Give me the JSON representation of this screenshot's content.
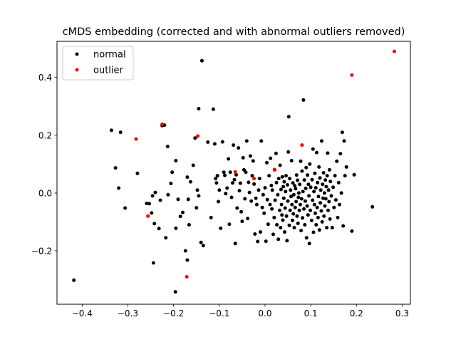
{
  "chart_data": {
    "type": "scatter",
    "title": "cMDS embedding (corrected and with abnormal outliers removed)",
    "xlabel": "",
    "ylabel": "",
    "xlim": [
      -0.455,
      0.318
    ],
    "ylim": [
      -0.385,
      0.525
    ],
    "xticks": [
      -0.4,
      -0.3,
      -0.2,
      -0.1,
      0.0,
      0.1,
      0.2,
      0.3
    ],
    "xtick_labels": [
      "−0.4",
      "−0.3",
      "−0.2",
      "−0.1",
      "0.0",
      "0.1",
      "0.2",
      "0.3"
    ],
    "yticks": [
      -0.2,
      0.0,
      0.2,
      0.4
    ],
    "ytick_labels": [
      "−0.2",
      "0.0",
      "0.2",
      "0.4"
    ],
    "grid": false,
    "legend_position": "upper left",
    "series": [
      {
        "name": "normal",
        "color": "#000000",
        "points": [
          [
            -0.418,
            -0.302
          ],
          [
            -0.336,
            0.217
          ],
          [
            -0.316,
            0.21
          ],
          [
            -0.327,
            0.087
          ],
          [
            -0.32,
            0.017
          ],
          [
            -0.306,
            -0.052
          ],
          [
            -0.279,
            0.068
          ],
          [
            -0.259,
            -0.036
          ],
          [
            -0.253,
            -0.037
          ],
          [
            -0.248,
            -0.069
          ],
          [
            -0.246,
            -0.01
          ],
          [
            -0.24,
            0.002
          ],
          [
            -0.242,
            -0.106
          ],
          [
            -0.244,
            -0.242
          ],
          [
            -0.232,
            -0.123
          ],
          [
            -0.229,
            -0.025
          ],
          [
            -0.225,
            0.233
          ],
          [
            -0.22,
            0.235
          ],
          [
            -0.217,
            -0.155
          ],
          [
            -0.213,
            0.161
          ],
          [
            -0.212,
            -0.006
          ],
          [
            -0.206,
            0.033
          ],
          [
            -0.203,
            0.072
          ],
          [
            -0.195,
            0.112
          ],
          [
            -0.195,
            -0.122
          ],
          [
            -0.196,
            -0.342
          ],
          [
            -0.19,
            -0.022
          ],
          [
            -0.185,
            -0.081
          ],
          [
            -0.18,
            -0.067
          ],
          [
            -0.174,
            -0.2
          ],
          [
            -0.17,
            0.055
          ],
          [
            -0.168,
            -0.022
          ],
          [
            -0.17,
            -0.232
          ],
          [
            -0.166,
            -0.11
          ],
          [
            -0.163,
            0.039
          ],
          [
            -0.157,
            0.096
          ],
          [
            -0.15,
            -0.051
          ],
          [
            -0.153,
            0.19
          ],
          [
            -0.148,
            0.01
          ],
          [
            -0.145,
            0.292
          ],
          [
            -0.138,
            0.458
          ],
          [
            -0.14,
            -0.171
          ],
          [
            -0.135,
            -0.182
          ],
          [
            -0.145,
            -0.01
          ],
          [
            -0.125,
            0.176
          ],
          [
            -0.118,
            -0.085
          ],
          [
            -0.113,
            0.29
          ],
          [
            -0.11,
            0.17
          ],
          [
            -0.108,
            0.05
          ],
          [
            -0.106,
            0.035
          ],
          [
            -0.104,
            0.06
          ],
          [
            -0.102,
            -0.03
          ],
          [
            -0.1,
            0.01
          ],
          [
            -0.097,
            -0.122
          ],
          [
            -0.093,
            0.177
          ],
          [
            -0.09,
            0.072
          ],
          [
            -0.088,
            0.061
          ],
          [
            -0.086,
            -0.002
          ],
          [
            -0.083,
            0.017
          ],
          [
            -0.08,
            0.118
          ],
          [
            -0.078,
            -0.108
          ],
          [
            -0.076,
            0.072
          ],
          [
            -0.073,
            -0.015
          ],
          [
            -0.071,
            0.035
          ],
          [
            -0.069,
            0.166
          ],
          [
            -0.067,
            0.046
          ],
          [
            -0.065,
            -0.175
          ],
          [
            -0.063,
            0.063
          ],
          [
            -0.061,
            -0.052
          ],
          [
            -0.058,
            0.156
          ],
          [
            -0.056,
            0.008
          ],
          [
            -0.054,
            0.034
          ],
          [
            -0.052,
            -0.065
          ],
          [
            -0.05,
            -0.098
          ],
          [
            -0.048,
            0.122
          ],
          [
            -0.046,
            0.08
          ],
          [
            -0.044,
            -0.02
          ],
          [
            -0.042,
            0.072
          ],
          [
            -0.04,
            0.18
          ],
          [
            -0.038,
            -0.088
          ],
          [
            -0.036,
            0.037
          ],
          [
            -0.034,
            0.002
          ],
          [
            -0.032,
            0.128
          ],
          [
            -0.03,
            -0.028
          ],
          [
            -0.028,
            0.06
          ],
          [
            -0.026,
            0.111
          ],
          [
            -0.024,
            0.031
          ],
          [
            -0.022,
            -0.142
          ],
          [
            -0.02,
            -0.018
          ],
          [
            -0.018,
            -0.04
          ],
          [
            -0.016,
            -0.168
          ],
          [
            -0.014,
            0.01
          ],
          [
            -0.012,
            0.05
          ],
          [
            -0.01,
            -0.135
          ],
          [
            -0.008,
            0.18
          ],
          [
            -0.006,
            -0.05
          ],
          [
            -0.004,
            -0.006
          ],
          [
            -0.002,
            -0.07
          ],
          [
            0.0,
            0.018
          ],
          [
            0.002,
            -0.167
          ],
          [
            0.004,
            0.105
          ],
          [
            0.005,
            -0.023
          ],
          [
            0.007,
            -0.108
          ],
          [
            0.009,
            0.06
          ],
          [
            0.011,
            -0.04
          ],
          [
            0.012,
            0.12
          ],
          [
            0.014,
            0.026
          ],
          [
            0.015,
            -0.055
          ],
          [
            0.016,
            0.01
          ],
          [
            0.018,
            -0.143
          ],
          [
            0.02,
            -0.085
          ],
          [
            0.021,
            0.08
          ],
          [
            0.022,
            -0.025
          ],
          [
            0.024,
            0.137
          ],
          [
            0.025,
            0.036
          ],
          [
            0.026,
            -0.11
          ],
          [
            0.028,
            -0.006
          ],
          [
            0.029,
            -0.16
          ],
          [
            0.03,
            0.05
          ],
          [
            0.032,
            -0.06
          ],
          [
            0.033,
            0.096
          ],
          [
            0.034,
            -0.12
          ],
          [
            0.035,
            0.012
          ],
          [
            0.036,
            -0.04
          ],
          [
            0.037,
            -0.076
          ],
          [
            0.038,
            0.056
          ],
          [
            0.039,
            -0.094
          ],
          [
            0.04,
            0.022
          ],
          [
            0.041,
            -0.018
          ],
          [
            0.042,
            0.039
          ],
          [
            0.043,
            -0.135
          ],
          [
            0.044,
            -0.052
          ],
          [
            0.045,
            0.005
          ],
          [
            0.046,
            0.06
          ],
          [
            0.047,
            -0.08
          ],
          [
            0.048,
            -0.165
          ],
          [
            0.049,
            0.028
          ],
          [
            0.05,
            -0.028
          ],
          [
            0.051,
            0.142
          ],
          [
            0.052,
            0.264
          ],
          [
            0.053,
            -0.112
          ],
          [
            0.054,
            0.05
          ],
          [
            0.055,
            -0.06
          ],
          [
            0.056,
            0.01
          ],
          [
            0.057,
            -0.012
          ],
          [
            0.058,
            0.112
          ],
          [
            0.059,
            -0.04
          ],
          [
            0.06,
            -0.095
          ],
          [
            0.061,
            0.035
          ],
          [
            0.062,
            -0.072
          ],
          [
            0.063,
            -0.006
          ],
          [
            0.064,
            -0.12
          ],
          [
            0.065,
            0.025
          ],
          [
            0.066,
            -0.05
          ],
          [
            0.067,
            0.015
          ],
          [
            0.068,
            -0.03
          ],
          [
            0.069,
            0.062
          ],
          [
            0.07,
            -0.08
          ],
          [
            0.071,
            0.044
          ],
          [
            0.072,
            -0.105
          ],
          [
            0.073,
            -0.015
          ],
          [
            0.074,
            0.0
          ],
          [
            0.075,
            -0.06
          ],
          [
            0.076,
            0.03
          ],
          [
            0.077,
            -0.04
          ],
          [
            0.078,
            0.11
          ],
          [
            0.079,
            -0.13
          ],
          [
            0.08,
            -0.02
          ],
          [
            0.081,
            0.076
          ],
          [
            0.082,
            -0.086
          ],
          [
            0.083,
            0.005
          ],
          [
            0.084,
            0.322
          ],
          [
            0.085,
            -0.055
          ],
          [
            0.086,
            0.045
          ],
          [
            0.087,
            -0.11
          ],
          [
            0.088,
            -0.028
          ],
          [
            0.089,
            0.016
          ],
          [
            0.09,
            0.088
          ],
          [
            0.091,
            -0.155
          ],
          [
            0.092,
            -0.045
          ],
          [
            0.093,
            0.062
          ],
          [
            0.094,
            -0.076
          ],
          [
            0.095,
            0.03
          ],
          [
            0.096,
            -0.01
          ],
          [
            0.097,
            -0.175
          ],
          [
            0.098,
            0.1
          ],
          [
            0.099,
            -0.06
          ],
          [
            0.1,
            0.02
          ],
          [
            0.102,
            -0.095
          ],
          [
            0.103,
            0.046
          ],
          [
            0.104,
            -0.025
          ],
          [
            0.105,
            0.152
          ],
          [
            0.106,
            -0.136
          ],
          [
            0.107,
            0.005
          ],
          [
            0.108,
            -0.04
          ],
          [
            0.109,
            0.068
          ],
          [
            0.11,
            -0.07
          ],
          [
            0.111,
            0.018
          ],
          [
            0.112,
            -0.11
          ],
          [
            0.113,
            0.14
          ],
          [
            0.114,
            -0.05
          ],
          [
            0.115,
            0.036
          ],
          [
            0.116,
            -0.085
          ],
          [
            0.117,
            -0.012
          ],
          [
            0.118,
            0.09
          ],
          [
            0.119,
            -0.128
          ],
          [
            0.12,
            0.052
          ],
          [
            0.121,
            -0.034
          ],
          [
            0.122,
            0.01
          ],
          [
            0.123,
            -0.062
          ],
          [
            0.124,
            0.18
          ],
          [
            0.125,
            -0.1
          ],
          [
            0.126,
            0.03
          ],
          [
            0.127,
            -0.018
          ],
          [
            0.128,
            0.07
          ],
          [
            0.129,
            -0.08
          ],
          [
            0.13,
            0.0
          ],
          [
            0.131,
            -0.045
          ],
          [
            0.132,
            0.045
          ],
          [
            0.133,
            -0.02
          ],
          [
            0.134,
            0.022
          ],
          [
            0.135,
            -0.12
          ],
          [
            0.136,
            0.06
          ],
          [
            0.137,
            0.138
          ],
          [
            0.138,
            -0.06
          ],
          [
            0.139,
            0.01
          ],
          [
            0.14,
            -0.03
          ],
          [
            0.141,
            0.08
          ],
          [
            0.142,
            -0.09
          ],
          [
            0.143,
            0.04
          ],
          [
            0.145,
            -0.01
          ],
          [
            0.147,
            -0.12
          ],
          [
            0.149,
            0.02
          ],
          [
            0.151,
            -0.05
          ],
          [
            0.153,
            0.06
          ],
          [
            0.155,
            -0.024
          ],
          [
            0.157,
            0.11
          ],
          [
            0.159,
            -0.085
          ],
          [
            0.161,
            0.036
          ],
          [
            0.163,
            -0.04
          ],
          [
            0.165,
            0.136
          ],
          [
            0.167,
            0.0
          ],
          [
            0.169,
            0.21
          ],
          [
            0.171,
            -0.114
          ],
          [
            0.173,
            0.18
          ],
          [
            0.175,
            0.06
          ],
          [
            0.178,
            0.09
          ],
          [
            0.19,
            -0.132
          ],
          [
            0.195,
            0.063
          ],
          [
            0.235,
            -0.048
          ]
        ]
      },
      {
        "name": "outlier",
        "color": "#ff0000",
        "points": [
          [
            0.283,
            0.49
          ],
          [
            0.19,
            0.408
          ],
          [
            -0.225,
            0.238
          ],
          [
            -0.147,
            0.197
          ],
          [
            -0.282,
            0.187
          ],
          [
            0.081,
            0.166
          ],
          [
            0.021,
            0.081
          ],
          [
            -0.065,
            0.073
          ],
          [
            -0.024,
            0.05
          ],
          [
            -0.256,
            -0.08
          ],
          [
            -0.171,
            -0.29
          ]
        ]
      }
    ]
  }
}
